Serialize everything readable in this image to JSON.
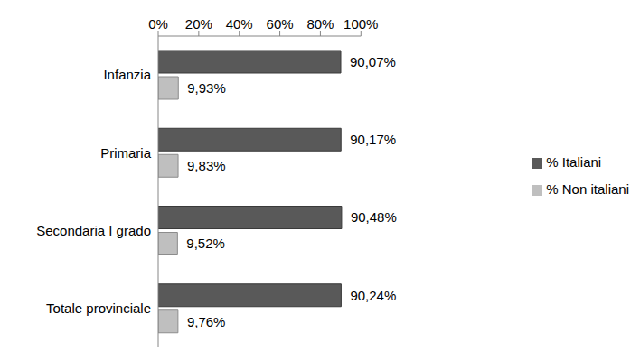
{
  "chart_data": {
    "type": "bar",
    "orientation": "horizontal",
    "categories": [
      "Infanzia",
      "Primaria",
      "Secondaria I grado",
      "Totale provinciale"
    ],
    "series": [
      {
        "name": "% Italiani",
        "color": "#595959",
        "values": [
          90.07,
          90.17,
          90.48,
          90.24
        ],
        "value_labels": [
          "90,07%",
          "90,17%",
          "90,48%",
          "90,24%"
        ]
      },
      {
        "name": "% Non italiani",
        "color": "#bfbfbf",
        "values": [
          9.93,
          9.83,
          9.52,
          9.76
        ],
        "value_labels": [
          "9,93%",
          "9,83%",
          "9,52%",
          "9,76%"
        ]
      }
    ],
    "xlim": [
      0,
      100
    ],
    "xticks": [
      {
        "value": 0,
        "label": "0%"
      },
      {
        "value": 20,
        "label": "20%"
      },
      {
        "value": 40,
        "label": "40%"
      },
      {
        "value": 60,
        "label": "60%"
      },
      {
        "value": 80,
        "label": "80%"
      },
      {
        "value": 100,
        "label": "100%"
      }
    ],
    "grid": false,
    "legend": "right",
    "data_labels": true
  }
}
